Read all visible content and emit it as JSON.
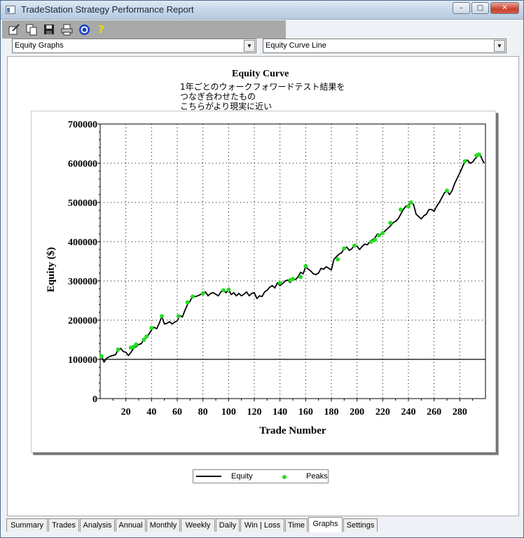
{
  "window": {
    "title": "TradeStation Strategy Performance Report"
  },
  "toolbar": {
    "icons": [
      "properties-icon",
      "copy-icon",
      "save-icon",
      "print-icon",
      "target-icon",
      "help-icon"
    ]
  },
  "dropdowns": {
    "graph_type": "Equity Graphs",
    "graph_style": "Equity Curve Line"
  },
  "chart_note": [
    "1年ごとのウォークフォワードテスト結果を",
    "つなぎ合わせたもの",
    "こちらがより現実に近い"
  ],
  "chart_data": {
    "type": "line",
    "title": "Equity Curve",
    "xlabel": "Trade Number",
    "ylabel": "Equity ($)",
    "xlim": [
      0,
      300
    ],
    "ylim": [
      0,
      700000
    ],
    "x_ticks": [
      20,
      40,
      60,
      80,
      100,
      120,
      140,
      160,
      180,
      200,
      220,
      240,
      260,
      280
    ],
    "y_ticks": [
      0,
      100000,
      200000,
      300000,
      400000,
      500000,
      600000,
      700000
    ],
    "y_tick_labels": [
      "0",
      "100000",
      "200000",
      "300000",
      "400000",
      "500000",
      "600000",
      "700000"
    ],
    "baseline": 100000,
    "grid": true,
    "legend": "bottom",
    "series": [
      {
        "name": "Equity",
        "color": "#000000",
        "x": [
          1,
          3,
          5,
          8,
          10,
          12,
          14,
          16,
          18,
          20,
          22,
          24,
          26,
          28,
          30,
          32,
          34,
          36,
          38,
          40,
          42,
          44,
          46,
          48,
          50,
          52,
          54,
          56,
          58,
          60,
          62,
          64,
          66,
          68,
          70,
          72,
          74,
          76,
          78,
          80,
          82,
          84,
          86,
          88,
          90,
          92,
          94,
          96,
          98,
          100,
          102,
          104,
          106,
          108,
          110,
          112,
          114,
          116,
          118,
          120,
          122,
          124,
          126,
          128,
          130,
          132,
          134,
          136,
          138,
          140,
          142,
          144,
          146,
          148,
          150,
          152,
          154,
          156,
          158,
          160,
          162,
          164,
          166,
          168,
          170,
          172,
          174,
          176,
          178,
          180,
          182,
          184,
          186,
          188,
          190,
          192,
          194,
          196,
          198,
          200,
          202,
          204,
          206,
          208,
          210,
          212,
          214,
          216,
          218,
          220,
          222,
          224,
          226,
          228,
          230,
          232,
          234,
          236,
          238,
          240,
          242,
          244,
          246,
          248,
          250,
          252,
          254,
          256,
          258,
          260,
          262,
          264,
          266,
          268,
          270,
          272,
          274,
          276,
          278,
          280,
          282,
          284,
          286,
          288,
          290,
          292,
          294,
          296,
          298,
          299
        ],
        "values": [
          108000,
          93000,
          103000,
          108000,
          110000,
          112000,
          125000,
          128000,
          120000,
          118000,
          110000,
          118000,
          128000,
          132000,
          138000,
          140000,
          150000,
          155000,
          165000,
          175000,
          182000,
          178000,
          192000,
          210000,
          190000,
          192000,
          196000,
          190000,
          195000,
          198000,
          212000,
          208000,
          225000,
          240000,
          248000,
          262000,
          260000,
          262000,
          265000,
          268000,
          272000,
          262000,
          268000,
          270000,
          266000,
          262000,
          272000,
          276000,
          270000,
          278000,
          265000,
          270000,
          262000,
          268000,
          262000,
          266000,
          272000,
          262000,
          268000,
          270000,
          255000,
          262000,
          260000,
          272000,
          276000,
          284000,
          288000,
          282000,
          295000,
          288000,
          293000,
          300000,
          302000,
          296000,
          305000,
          303000,
          310000,
          322000,
          318000,
          336000,
          330000,
          325000,
          318000,
          316000,
          320000,
          332000,
          330000,
          336000,
          332000,
          328000,
          355000,
          362000,
          368000,
          372000,
          383000,
          386000,
          378000,
          382000,
          392000,
          388000,
          380000,
          388000,
          394000,
          392000,
          400000,
          405000,
          410000,
          420000,
          418000,
          422000,
          428000,
          434000,
          440000,
          448000,
          452000,
          458000,
          470000,
          482000,
          490000,
          494000,
          500000,
          495000,
          470000,
          464000,
          458000,
          466000,
          470000,
          482000,
          482000,
          478000,
          490000,
          500000,
          512000,
          524000,
          530000,
          520000,
          530000,
          548000,
          562000,
          575000,
          590000,
          605000,
          608000,
          600000,
          603000,
          612000,
          618000,
          620000,
          606000,
          600000
        ]
      },
      {
        "name": "Peaks",
        "color": "#22dd22",
        "x": [
          1,
          14,
          24,
          26,
          28,
          34,
          36,
          40,
          48,
          61,
          68,
          72,
          80,
          96,
          100,
          140,
          148,
          150,
          156,
          160,
          185,
          190,
          198,
          211,
          214,
          217,
          220,
          226,
          234,
          240,
          242,
          270,
          284,
          293,
          295
        ],
        "values": [
          108000,
          125000,
          130000,
          132000,
          138000,
          150000,
          158000,
          180000,
          210000,
          210000,
          245000,
          260000,
          268000,
          276000,
          278000,
          295000,
          302000,
          305000,
          310000,
          338000,
          355000,
          383000,
          390000,
          400000,
          405000,
          416000,
          422000,
          448000,
          482000,
          490000,
          500000,
          530000,
          605000,
          620000,
          622000
        ]
      }
    ]
  },
  "legend": {
    "equity_label": "Equity",
    "peaks_label": "Peaks"
  },
  "tabs": [
    {
      "label": "Summary",
      "active": false
    },
    {
      "label": "Trades",
      "active": false
    },
    {
      "label": "Analysis",
      "active": false
    },
    {
      "label": "Annual",
      "active": false
    },
    {
      "label": "Monthly",
      "active": false
    },
    {
      "label": "Weekly",
      "active": false
    },
    {
      "label": "Daily",
      "active": false
    },
    {
      "label": "Win | Loss",
      "active": false
    },
    {
      "label": "Time",
      "active": false
    },
    {
      "label": "Graphs",
      "active": true
    },
    {
      "label": "Settings",
      "active": false
    }
  ]
}
